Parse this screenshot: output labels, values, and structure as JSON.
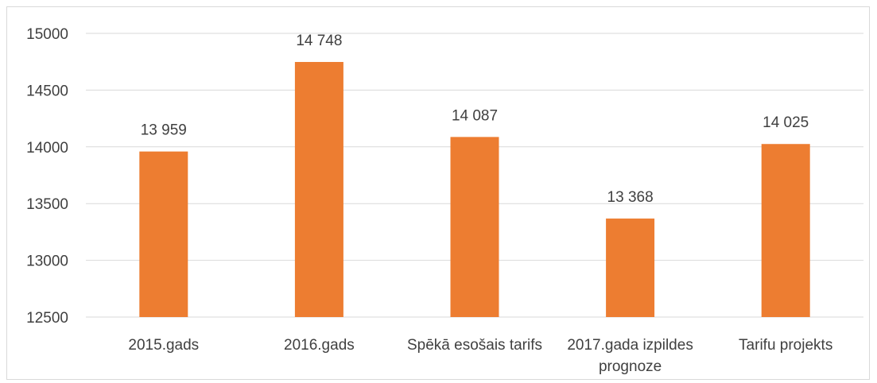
{
  "chart_data": {
    "type": "bar",
    "categories": [
      [
        "2015.gads"
      ],
      [
        "2016.gads"
      ],
      [
        "Spēkā esošais tarifs"
      ],
      [
        "2017.gada izpildes",
        "prognoze"
      ],
      [
        "Tarifu projekts"
      ]
    ],
    "values": [
      13959,
      14748,
      14087,
      13368,
      14025
    ],
    "data_labels": [
      "13 959",
      "14 748",
      "14 087",
      "13 368",
      "14 025"
    ],
    "ylim": [
      12500,
      15000
    ],
    "y_ticks": [
      15000,
      14500,
      14000,
      13500,
      13000,
      12500
    ],
    "y_tick_labels": [
      "15000",
      "14500",
      "14000",
      "13500",
      "13000",
      "12500"
    ],
    "grid": true,
    "bar_color": "#ED7D31",
    "grid_color": "#d9d9d9"
  }
}
